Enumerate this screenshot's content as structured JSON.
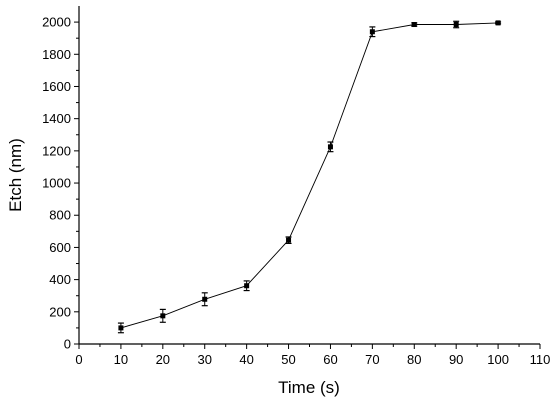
{
  "chart_data": {
    "type": "line",
    "xlabel": "Time (s)",
    "ylabel": "Etch (nm)",
    "xlim": [
      0,
      110
    ],
    "ylim": [
      0,
      2100
    ],
    "x_ticks": [
      0,
      10,
      20,
      30,
      40,
      50,
      60,
      70,
      80,
      90,
      100,
      110
    ],
    "y_ticks": [
      0,
      200,
      400,
      600,
      800,
      1000,
      1200,
      1400,
      1600,
      1800,
      2000
    ],
    "grid": false,
    "legend": "none",
    "series": [
      {
        "x": [
          10,
          20,
          30,
          40,
          50,
          60,
          70,
          80,
          90,
          100
        ],
        "y": [
          100,
          175,
          278,
          362,
          645,
          1225,
          1940,
          1985,
          1985,
          1995
        ],
        "error": [
          30,
          40,
          40,
          30,
          20,
          30,
          30,
          10,
          20,
          6
        ],
        "marker": "square",
        "color": "#000000"
      }
    ]
  }
}
